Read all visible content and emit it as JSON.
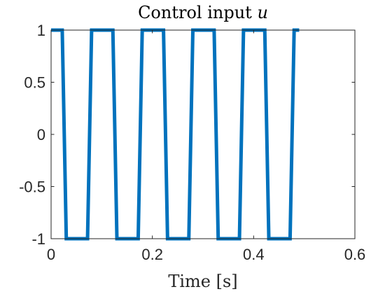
{
  "chart_data": {
    "type": "line",
    "title": "Control input",
    "title_symbol": "u",
    "xlabel": "Time [s]",
    "ylabel": "",
    "xlim": [
      0,
      0.6
    ],
    "ylim": [
      -1,
      1
    ],
    "xticks": [
      0,
      0.2,
      0.4,
      0.6
    ],
    "xtick_labels": [
      "0",
      "0.2",
      "0.4",
      "0.6"
    ],
    "yticks": [
      -1,
      -0.5,
      0,
      0.5,
      1
    ],
    "ytick_labels": [
      "-1",
      "-0.5",
      "0",
      "0.5",
      "1"
    ],
    "grid": false,
    "series": [
      {
        "color": "#0072BD",
        "x": [
          0,
          0.022,
          0.03,
          0.072,
          0.08,
          0.122,
          0.13,
          0.172,
          0.18,
          0.222,
          0.23,
          0.272,
          0.28,
          0.322,
          0.33,
          0.372,
          0.38,
          0.422,
          0.43,
          0.472,
          0.48,
          0.49
        ],
        "y": [
          1,
          1,
          -1,
          -1,
          1,
          1,
          -1,
          -1,
          1,
          1,
          -1,
          -1,
          1,
          1,
          -1,
          -1,
          1,
          1,
          -1,
          -1,
          1,
          1
        ]
      }
    ]
  }
}
